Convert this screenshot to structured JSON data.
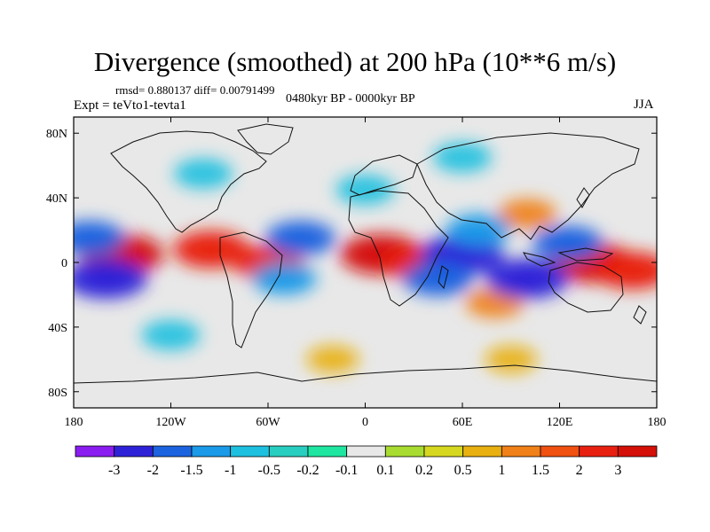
{
  "header": {
    "title": "Divergence (smoothed) at 200 hPa (10**6 m/s)",
    "stats": "rmsd= 0.880137 diff= 0.00791499",
    "experiment": "Expt = teVto1-tevta1",
    "period": "0480kyr BP - 0000kyr BP",
    "season": "JJA"
  },
  "chart_data": {
    "type": "heatmap",
    "title": "Divergence (smoothed) at 200 hPa (10**6 m/s)",
    "units": "10**6 m/s",
    "projection": "cylindrical equidistant",
    "x_range": [
      -180,
      180
    ],
    "y_range": [
      -90,
      90
    ],
    "lon_ticks": [
      "180",
      "120W",
      "60W",
      "0",
      "60E",
      "120E",
      "180"
    ],
    "lon_tick_values": [
      -180,
      -120,
      -60,
      0,
      60,
      120,
      180
    ],
    "lat_ticks": [
      "80N",
      "40N",
      "0",
      "40S",
      "80S"
    ],
    "lat_tick_values": [
      80,
      40,
      0,
      -40,
      -80
    ],
    "colorbar": {
      "labels": [
        "-3",
        "-2",
        "-1.5",
        "-1",
        "-0.5",
        "-0.2",
        "-0.1",
        "0.1",
        "0.2",
        "0.5",
        "1",
        "1.5",
        "2",
        "3"
      ],
      "colors": [
        "#8a1df0",
        "#2e22d8",
        "#1c63e0",
        "#1a9ae8",
        "#1ec0e0",
        "#28cfc0",
        "#1ee6a0",
        "#e8e8e8",
        "#a8dc30",
        "#d6d820",
        "#e8b010",
        "#f08018",
        "#f05010",
        "#e82010",
        "#d41008"
      ]
    },
    "field_features": [
      {
        "lon": -150,
        "lat": 5,
        "value": 3
      },
      {
        "lon": -95,
        "lat": 8,
        "value": 2.5
      },
      {
        "lon": -60,
        "lat": 0,
        "value": 2
      },
      {
        "lon": 10,
        "lat": 5,
        "value": 3
      },
      {
        "lon": 32,
        "lat": 0,
        "value": 2
      },
      {
        "lon": 140,
        "lat": 0,
        "value": 3
      },
      {
        "lon": 165,
        "lat": -5,
        "value": 2.5
      },
      {
        "lon": 100,
        "lat": 30,
        "value": 1
      },
      {
        "lon": 80,
        "lat": -25,
        "value": 1
      },
      {
        "lon": -160,
        "lat": -10,
        "value": -3
      },
      {
        "lon": -170,
        "lat": 15,
        "value": -2
      },
      {
        "lon": -40,
        "lat": 15,
        "value": -2
      },
      {
        "lon": -50,
        "lat": -10,
        "value": -1.5
      },
      {
        "lon": 60,
        "lat": 5,
        "value": -3
      },
      {
        "lon": 45,
        "lat": -10,
        "value": -2
      },
      {
        "lon": 100,
        "lat": -10,
        "value": -3
      },
      {
        "lon": 125,
        "lat": 12,
        "value": -2
      },
      {
        "lon": 70,
        "lat": 20,
        "value": -1.5
      },
      {
        "lon": 0,
        "lat": 45,
        "value": -1
      },
      {
        "lon": -100,
        "lat": 55,
        "value": -1
      },
      {
        "lon": 60,
        "lat": 65,
        "value": -1
      },
      {
        "lon": -120,
        "lat": -45,
        "value": -1
      },
      {
        "lon": 90,
        "lat": -60,
        "value": 0.5
      },
      {
        "lon": -20,
        "lat": -60,
        "value": 0.5
      }
    ]
  }
}
